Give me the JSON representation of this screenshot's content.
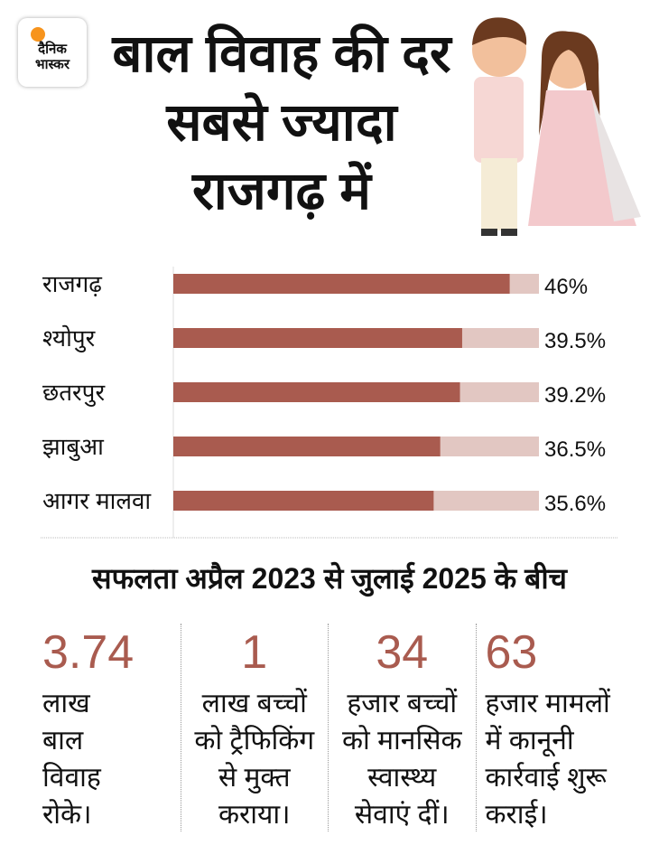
{
  "logo": {
    "line1": "दैनिक",
    "line2": "भास्कर"
  },
  "title": "बाल विवाह की दर सबसे ज्यादा राजगढ़ में",
  "colors": {
    "bar": "#a95b4f",
    "track": "#e2c7c2",
    "accent": "#a95b4f"
  },
  "chart_data": {
    "type": "bar",
    "orientation": "horizontal",
    "categories": [
      "राजगढ़",
      "श्योपुर",
      "छतरपुर",
      "झाबुआ",
      "आगर मालवा"
    ],
    "values": [
      46,
      39.5,
      39.2,
      36.5,
      35.6
    ],
    "labels": [
      "46%",
      "39.5%",
      "39.2%",
      "36.5%",
      "35.6%"
    ],
    "xlim": [
      0,
      50
    ],
    "title": "",
    "xlabel": "",
    "ylabel": ""
  },
  "subtitle": "सफलता अप्रैल 2023 से जुलाई 2025 के बीच",
  "stats": [
    {
      "num": "3.74",
      "text": "लाख बाल विवाह रोके।"
    },
    {
      "num": "1",
      "text": "लाख बच्चों को ट्रैफिकिंग से मुक्त कराया।"
    },
    {
      "num": "34",
      "text": "हजार बच्चों को मानसिक स्वास्थ्य सेवाएं दीं।"
    },
    {
      "num": "63",
      "text": "हजार मामलों में कानूनी कार्रवाई शुरू कराई।"
    }
  ]
}
